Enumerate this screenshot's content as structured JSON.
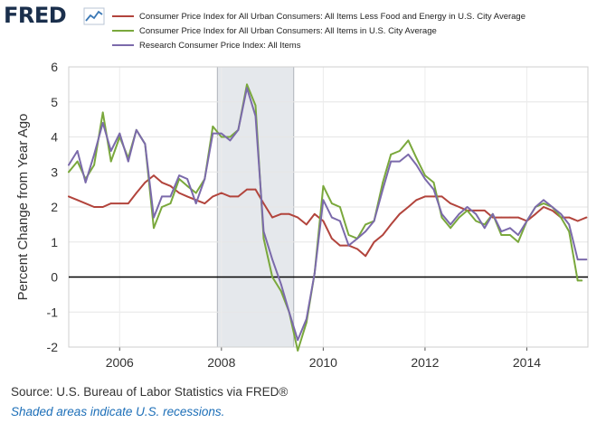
{
  "logo": {
    "text": "FRED",
    "icon": "line-chart-icon"
  },
  "colors": {
    "core": "#b2443c",
    "all": "#7aa83c",
    "research": "#7b6aab",
    "recession": "#e5e8ec",
    "axis": "#000000"
  },
  "legend": [
    {
      "key": "core",
      "label": "Consumer Price Index for All Urban Consumers: All Items Less Food and Energy in U.S. City Average"
    },
    {
      "key": "all",
      "label": "Consumer Price Index for All Urban Consumers: All Items in U.S. City Average"
    },
    {
      "key": "research",
      "label": "Research Consumer Price Index: All Items"
    }
  ],
  "chart_data": {
    "type": "line",
    "title": "",
    "xlabel": "",
    "ylabel": "Percent Change from Year Ago",
    "xlim": [
      2005,
      2015.2
    ],
    "ylim": [
      -2,
      6
    ],
    "yticks": [
      -2,
      -1,
      0,
      1,
      2,
      3,
      4,
      5,
      6
    ],
    "xticks": [
      2006,
      2008,
      2010,
      2012,
      2014
    ],
    "grid": true,
    "zero_line": true,
    "recessions": [
      [
        2007.92,
        2009.42
      ]
    ],
    "series": [
      {
        "name": "Consumer Price Index for All Urban Consumers: All Items Less Food and Energy in U.S. City Average",
        "key": "core",
        "x": [
          2005.0,
          2005.17,
          2005.33,
          2005.5,
          2005.67,
          2005.83,
          2006.0,
          2006.17,
          2006.33,
          2006.5,
          2006.67,
          2006.83,
          2007.0,
          2007.17,
          2007.33,
          2007.5,
          2007.67,
          2007.83,
          2008.0,
          2008.17,
          2008.33,
          2008.5,
          2008.67,
          2008.83,
          2009.0,
          2009.17,
          2009.33,
          2009.5,
          2009.67,
          2009.83,
          2010.0,
          2010.17,
          2010.33,
          2010.5,
          2010.67,
          2010.83,
          2011.0,
          2011.17,
          2011.33,
          2011.5,
          2011.67,
          2011.83,
          2012.0,
          2012.17,
          2012.33,
          2012.5,
          2012.67,
          2012.83,
          2013.0,
          2013.17,
          2013.33,
          2013.5,
          2013.67,
          2013.83,
          2014.0,
          2014.17,
          2014.33,
          2014.5,
          2014.67,
          2014.83,
          2015.0,
          2015.17
        ],
        "values": [
          2.3,
          2.2,
          2.1,
          2.0,
          2.0,
          2.1,
          2.1,
          2.1,
          2.4,
          2.7,
          2.9,
          2.7,
          2.6,
          2.4,
          2.3,
          2.2,
          2.1,
          2.3,
          2.4,
          2.3,
          2.3,
          2.5,
          2.5,
          2.1,
          1.7,
          1.8,
          1.8,
          1.7,
          1.5,
          1.8,
          1.6,
          1.1,
          0.9,
          0.9,
          0.8,
          0.6,
          1.0,
          1.2,
          1.5,
          1.8,
          2.0,
          2.2,
          2.3,
          2.3,
          2.3,
          2.1,
          2.0,
          1.9,
          1.9,
          1.9,
          1.7,
          1.7,
          1.7,
          1.7,
          1.6,
          1.8,
          2.0,
          1.9,
          1.7,
          1.7,
          1.6,
          1.7
        ]
      },
      {
        "name": "Consumer Price Index for All Urban Consumers: All Items in U.S. City Average",
        "key": "all",
        "x": [
          2005.0,
          2005.17,
          2005.33,
          2005.5,
          2005.67,
          2005.83,
          2006.0,
          2006.17,
          2006.33,
          2006.5,
          2006.67,
          2006.83,
          2007.0,
          2007.17,
          2007.33,
          2007.5,
          2007.67,
          2007.83,
          2008.0,
          2008.17,
          2008.33,
          2008.5,
          2008.67,
          2008.83,
          2009.0,
          2009.17,
          2009.33,
          2009.5,
          2009.67,
          2009.83,
          2010.0,
          2010.17,
          2010.33,
          2010.5,
          2010.67,
          2010.83,
          2011.0,
          2011.17,
          2011.33,
          2011.5,
          2011.67,
          2011.83,
          2012.0,
          2012.17,
          2012.33,
          2012.5,
          2012.67,
          2012.83,
          2013.0,
          2013.17,
          2013.33,
          2013.5,
          2013.67,
          2013.83,
          2014.0,
          2014.17,
          2014.33,
          2014.5,
          2014.67,
          2014.83,
          2015.0,
          2015.08
        ],
        "values": [
          3.0,
          3.3,
          2.8,
          3.2,
          4.7,
          3.3,
          4.0,
          3.4,
          4.2,
          3.8,
          1.4,
          2.0,
          2.1,
          2.8,
          2.6,
          2.4,
          2.8,
          4.3,
          4.0,
          4.0,
          4.2,
          5.5,
          4.9,
          1.1,
          0.0,
          -0.4,
          -1.0,
          -2.1,
          -1.3,
          0.1,
          2.6,
          2.1,
          2.0,
          1.2,
          1.1,
          1.5,
          1.6,
          2.7,
          3.5,
          3.6,
          3.9,
          3.4,
          2.9,
          2.7,
          1.7,
          1.4,
          1.7,
          1.9,
          1.6,
          1.5,
          1.8,
          1.2,
          1.2,
          1.0,
          1.6,
          2.0,
          2.1,
          2.0,
          1.7,
          1.3,
          -0.1,
          -0.1
        ]
      },
      {
        "name": "Research Consumer Price Index: All Items",
        "key": "research",
        "x": [
          2005.0,
          2005.17,
          2005.33,
          2005.5,
          2005.67,
          2005.83,
          2006.0,
          2006.17,
          2006.33,
          2006.5,
          2006.67,
          2006.83,
          2007.0,
          2007.17,
          2007.33,
          2007.5,
          2007.67,
          2007.83,
          2008.0,
          2008.17,
          2008.33,
          2008.5,
          2008.67,
          2008.83,
          2009.0,
          2009.17,
          2009.33,
          2009.5,
          2009.67,
          2009.83,
          2010.0,
          2010.17,
          2010.33,
          2010.5,
          2010.67,
          2010.83,
          2011.0,
          2011.17,
          2011.33,
          2011.5,
          2011.67,
          2011.83,
          2012.0,
          2012.17,
          2012.33,
          2012.5,
          2012.67,
          2012.83,
          2013.0,
          2013.17,
          2013.33,
          2013.5,
          2013.67,
          2013.83,
          2014.0,
          2014.17,
          2014.33,
          2014.5,
          2014.67,
          2014.83,
          2015.0,
          2015.17
        ],
        "values": [
          3.2,
          3.6,
          2.7,
          3.5,
          4.4,
          3.6,
          4.1,
          3.3,
          4.2,
          3.8,
          1.7,
          2.3,
          2.3,
          2.9,
          2.8,
          2.1,
          2.8,
          4.1,
          4.1,
          3.9,
          4.2,
          5.4,
          4.6,
          1.3,
          0.5,
          -0.2,
          -1.0,
          -1.8,
          -1.2,
          0.1,
          2.2,
          1.7,
          1.6,
          0.9,
          1.1,
          1.3,
          1.6,
          2.5,
          3.3,
          3.3,
          3.5,
          3.2,
          2.8,
          2.5,
          1.8,
          1.5,
          1.8,
          2.0,
          1.8,
          1.4,
          1.8,
          1.3,
          1.4,
          1.2,
          1.6,
          2.0,
          2.2,
          2.0,
          1.8,
          1.5,
          0.5,
          0.5
        ]
      }
    ]
  },
  "footer": {
    "source": "Source: U.S. Bureau of Labor Statistics via FRED®",
    "note": "Shaded areas indicate U.S. recessions."
  }
}
